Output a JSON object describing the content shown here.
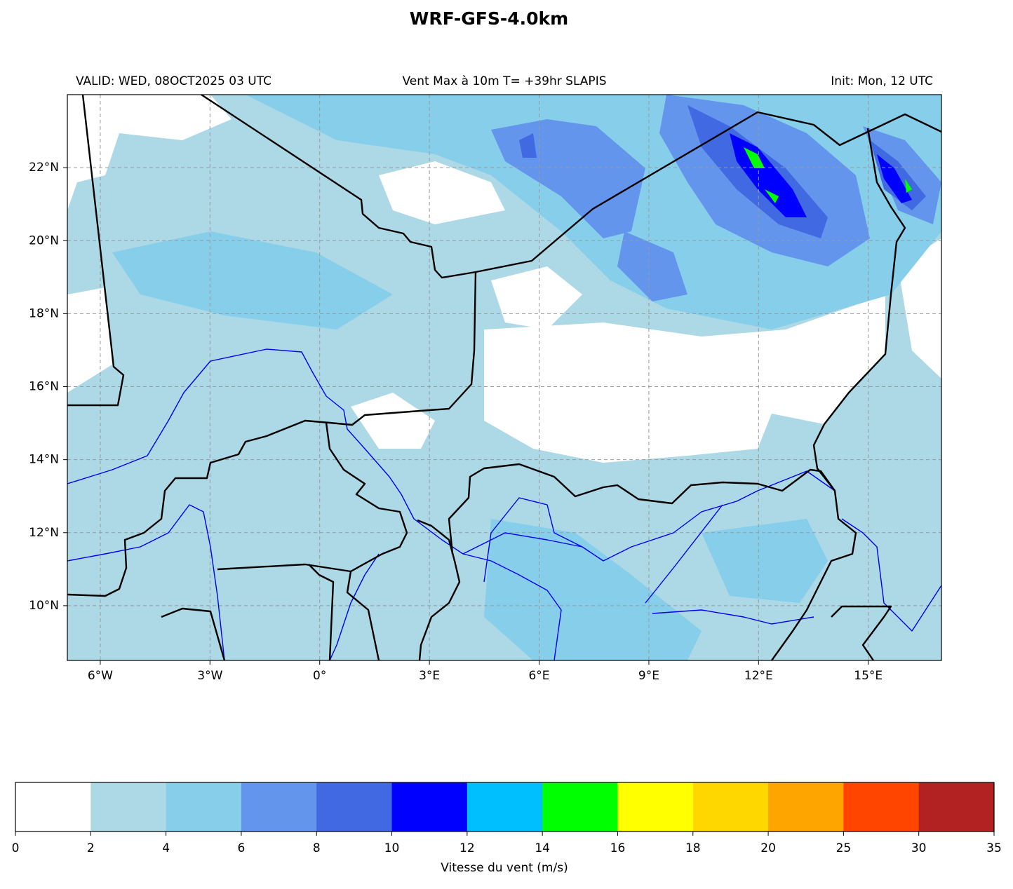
{
  "title": "WRF-GFS-4.0km",
  "valid": "VALID: WED, 08OCT2025 03 UTC",
  "subtitle": "Vent Max à 10m T= +39hr SLAPIS",
  "init": "Init: Mon, 12 UTC",
  "map": {
    "xlim": [
      -6.9,
      17
    ],
    "ylim": [
      8.5,
      24
    ],
    "grid": true,
    "xticks": [
      {
        "value": -6,
        "label": "6°W"
      },
      {
        "value": -3,
        "label": "3°W"
      },
      {
        "value": 0,
        "label": "0°"
      },
      {
        "value": 3,
        "label": "3°E"
      },
      {
        "value": 6,
        "label": "6°E"
      },
      {
        "value": 9,
        "label": "9°E"
      },
      {
        "value": 12,
        "label": "12°E"
      },
      {
        "value": 15,
        "label": "15°E"
      }
    ],
    "yticks": [
      {
        "value": 10,
        "label": "10°N"
      },
      {
        "value": 12,
        "label": "12°N"
      },
      {
        "value": 14,
        "label": "14°N"
      },
      {
        "value": 16,
        "label": "16°N"
      },
      {
        "value": 18,
        "label": "18°N"
      },
      {
        "value": 20,
        "label": "20°N"
      },
      {
        "value": 22,
        "label": "22°N"
      }
    ]
  },
  "colorbar": {
    "label": "Vitesse du vent (m/s)",
    "bounds": [
      0,
      2,
      4,
      6,
      8,
      10,
      12,
      14,
      16,
      18,
      20,
      25,
      30,
      35
    ],
    "colors": [
      "#ffffff",
      "#add8e6",
      "#87ceeb",
      "#6495ed",
      "#4169e1",
      "#0000ff",
      "#00bfff",
      "#00ff00",
      "#ffff00",
      "#ffd700",
      "#ffa500",
      "#ff4500",
      "#b22222"
    ]
  }
}
